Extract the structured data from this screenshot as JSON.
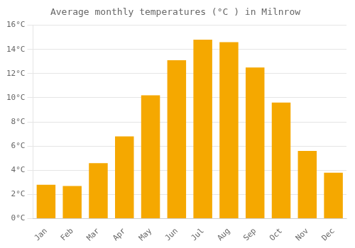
{
  "chart_data": {
    "type": "bar",
    "title": "Average monthly temperatures (°C ) in Milnrow",
    "categories": [
      "Jan",
      "Feb",
      "Mar",
      "Apr",
      "May",
      "Jun",
      "Jul",
      "Aug",
      "Sep",
      "Oct",
      "Nov",
      "Dec"
    ],
    "values": [
      2.8,
      2.7,
      4.6,
      6.8,
      10.2,
      13.1,
      14.8,
      14.6,
      12.5,
      9.6,
      5.6,
      3.8
    ],
    "color": "#F5A800",
    "ylim": [
      0,
      16
    ],
    "yticks": [
      {
        "value": 0,
        "label": "0°C"
      },
      {
        "value": 2,
        "label": "2°C"
      },
      {
        "value": 4,
        "label": "4°C"
      },
      {
        "value": 6,
        "label": "6°C"
      },
      {
        "value": 8,
        "label": "8°C"
      },
      {
        "value": 10,
        "label": "10°C"
      },
      {
        "value": 12,
        "label": "12°C"
      },
      {
        "value": 14,
        "label": "14°C"
      },
      {
        "value": 16,
        "label": "16°C"
      }
    ],
    "grid": true
  }
}
